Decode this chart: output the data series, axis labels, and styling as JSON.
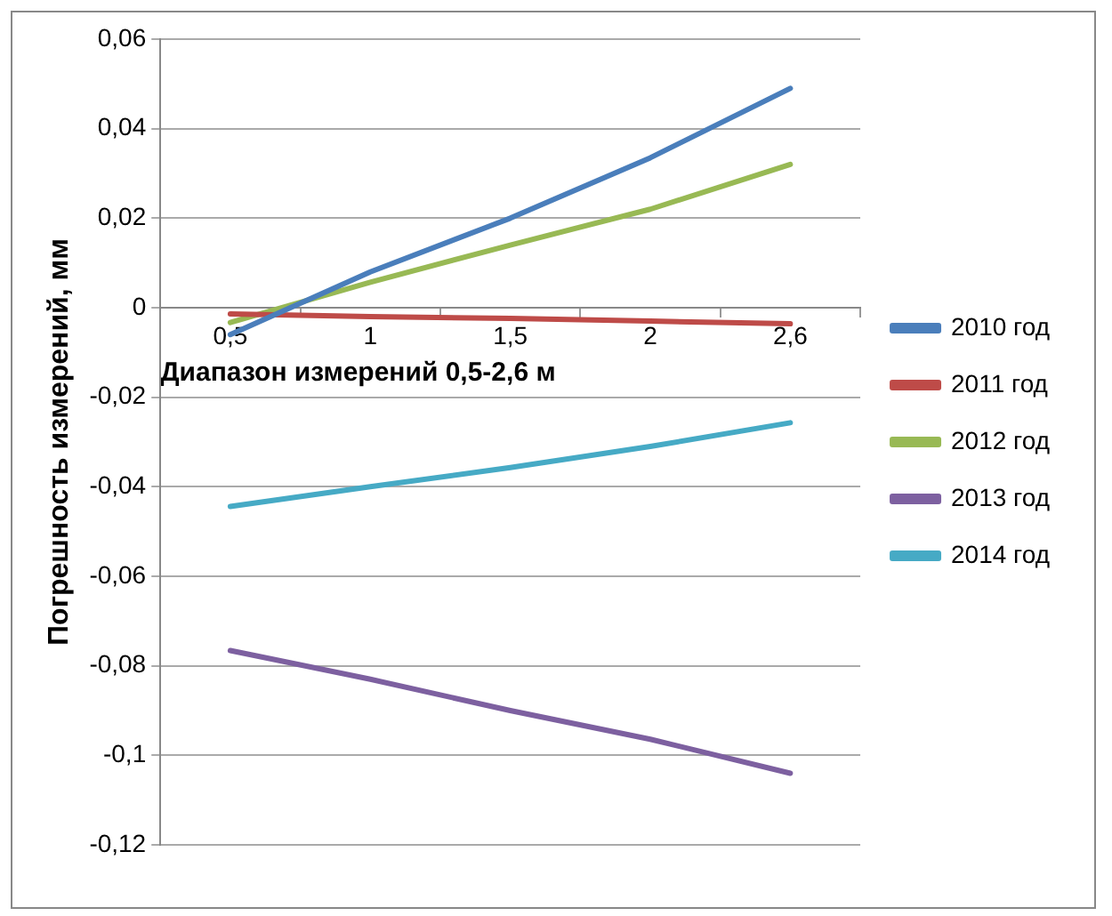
{
  "chart_data": {
    "type": "line",
    "xlabel": "Диапазон измерений 0,5-2,6 м",
    "ylabel": "Погрешность измерений, мм",
    "categories": [
      "0,5",
      "1",
      "1,5",
      "2",
      "2,6"
    ],
    "series": [
      {
        "name": "2010 год",
        "color": "#4a7ebb",
        "values": [
          -0.006,
          0.008,
          0.02,
          0.0335,
          0.049
        ]
      },
      {
        "name": "2011 год",
        "color": "#be4b48",
        "values": [
          -0.0014,
          -0.002,
          -0.0024,
          -0.003,
          -0.0036
        ]
      },
      {
        "name": "2012 год",
        "color": "#98b954",
        "values": [
          -0.0033,
          0.0057,
          0.014,
          0.022,
          0.032
        ]
      },
      {
        "name": "2013 год",
        "color": "#7d60a0",
        "values": [
          -0.0766,
          -0.083,
          -0.09,
          -0.0964,
          -0.104
        ]
      },
      {
        "name": "2014 год",
        "color": "#46aac5",
        "values": [
          -0.0444,
          -0.04,
          -0.0357,
          -0.031,
          -0.0257
        ]
      }
    ],
    "ylim": [
      -0.12,
      0.06
    ],
    "yticks": [
      {
        "value": -0.12,
        "label": "-0,12"
      },
      {
        "value": -0.1,
        "label": "-0,1"
      },
      {
        "value": -0.08,
        "label": "-0,08"
      },
      {
        "value": -0.06,
        "label": "-0,06"
      },
      {
        "value": -0.04,
        "label": "-0,04"
      },
      {
        "value": -0.02,
        "label": "-0,02"
      },
      0,
      {
        "value": 0.02,
        "label": "0,02"
      },
      {
        "value": 0.04,
        "label": "0,04"
      },
      {
        "value": 0.06,
        "label": "0,06"
      }
    ],
    "grid": "y",
    "legend": "right",
    "marker": "none",
    "line_style": "solid"
  }
}
